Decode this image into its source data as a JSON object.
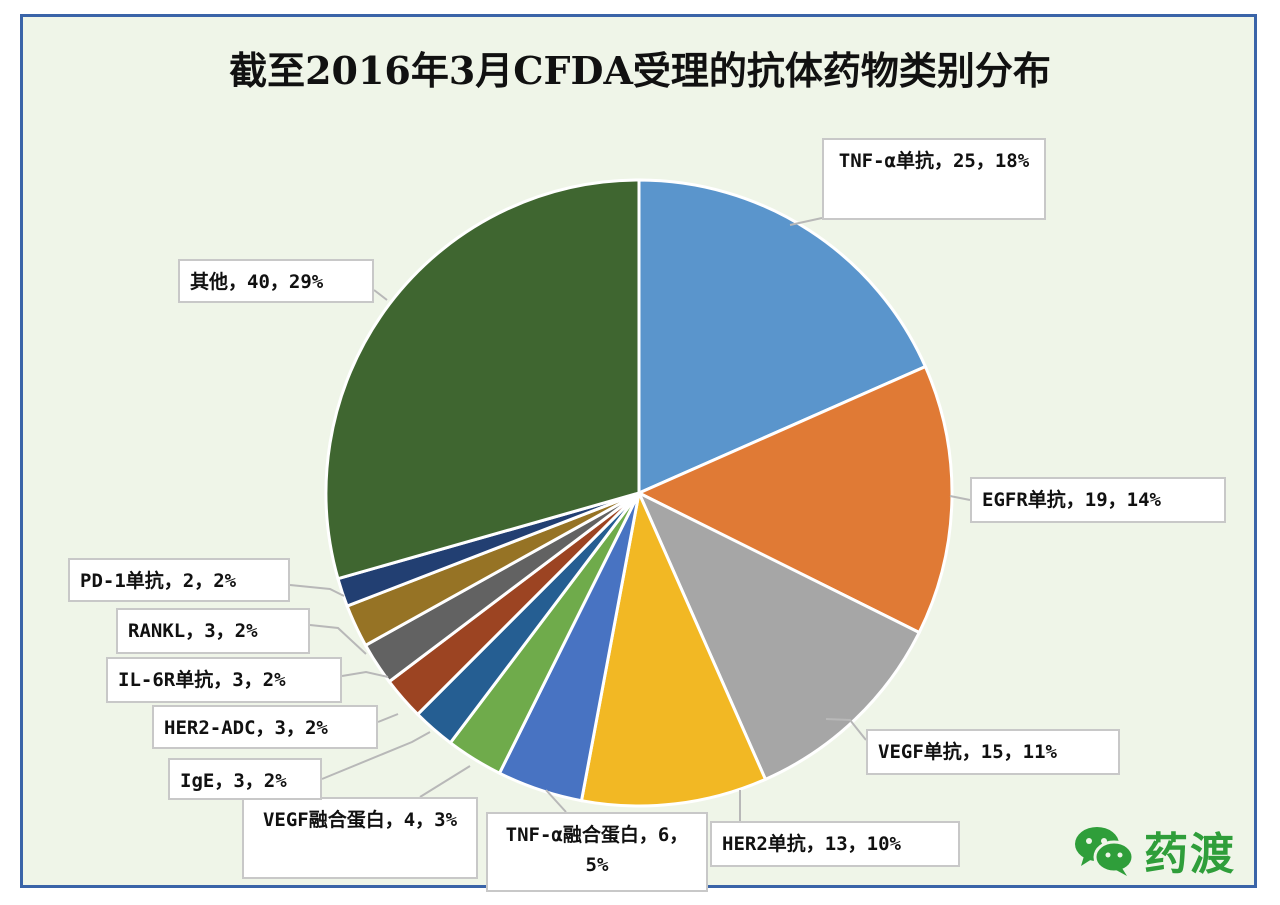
{
  "chart_data": {
    "type": "pie",
    "title": "截至2016年3月CFDA受理的抗体药物类别分布",
    "slices": [
      {
        "label": "TNF-α单抗，25，18%",
        "value": 25,
        "percent": 18,
        "color": "#5a95cc"
      },
      {
        "label": "EGFR单抗，19，14%",
        "value": 19,
        "percent": 14,
        "color": "#e07a35"
      },
      {
        "label": "VEGF单抗，15，11%",
        "value": 15,
        "percent": 11,
        "color": "#a6a6a6"
      },
      {
        "label": "HER2单抗，13，10%",
        "value": 13,
        "percent": 10,
        "color": "#f2b824"
      },
      {
        "label": "TNF-α融合蛋白，6，5%",
        "value": 6,
        "percent": 5,
        "color": "#4873c2"
      },
      {
        "label": "VEGF融合蛋白，4，3%",
        "value": 4,
        "percent": 3,
        "color": "#6fab4b"
      },
      {
        "label": "IgE，3，2%",
        "value": 3,
        "percent": 2,
        "color": "#255e92"
      },
      {
        "label": "HER2-ADC，3，2%",
        "value": 3,
        "percent": 2,
        "color": "#9c4422"
      },
      {
        "label": "IL-6R单抗，3，2%",
        "value": 3,
        "percent": 2,
        "color": "#626262"
      },
      {
        "label": "RANKL，3，2%",
        "value": 3,
        "percent": 2,
        "color": "#967325"
      },
      {
        "label": "PD-1单抗，2，2%",
        "value": 2,
        "percent": 2,
        "color": "#223f72"
      },
      {
        "label": "其他，40，29%",
        "value": 40,
        "percent": 29,
        "color": "#3f6630"
      }
    ]
  },
  "watermark": {
    "text": "药渡",
    "icon": "wechat-icon"
  }
}
